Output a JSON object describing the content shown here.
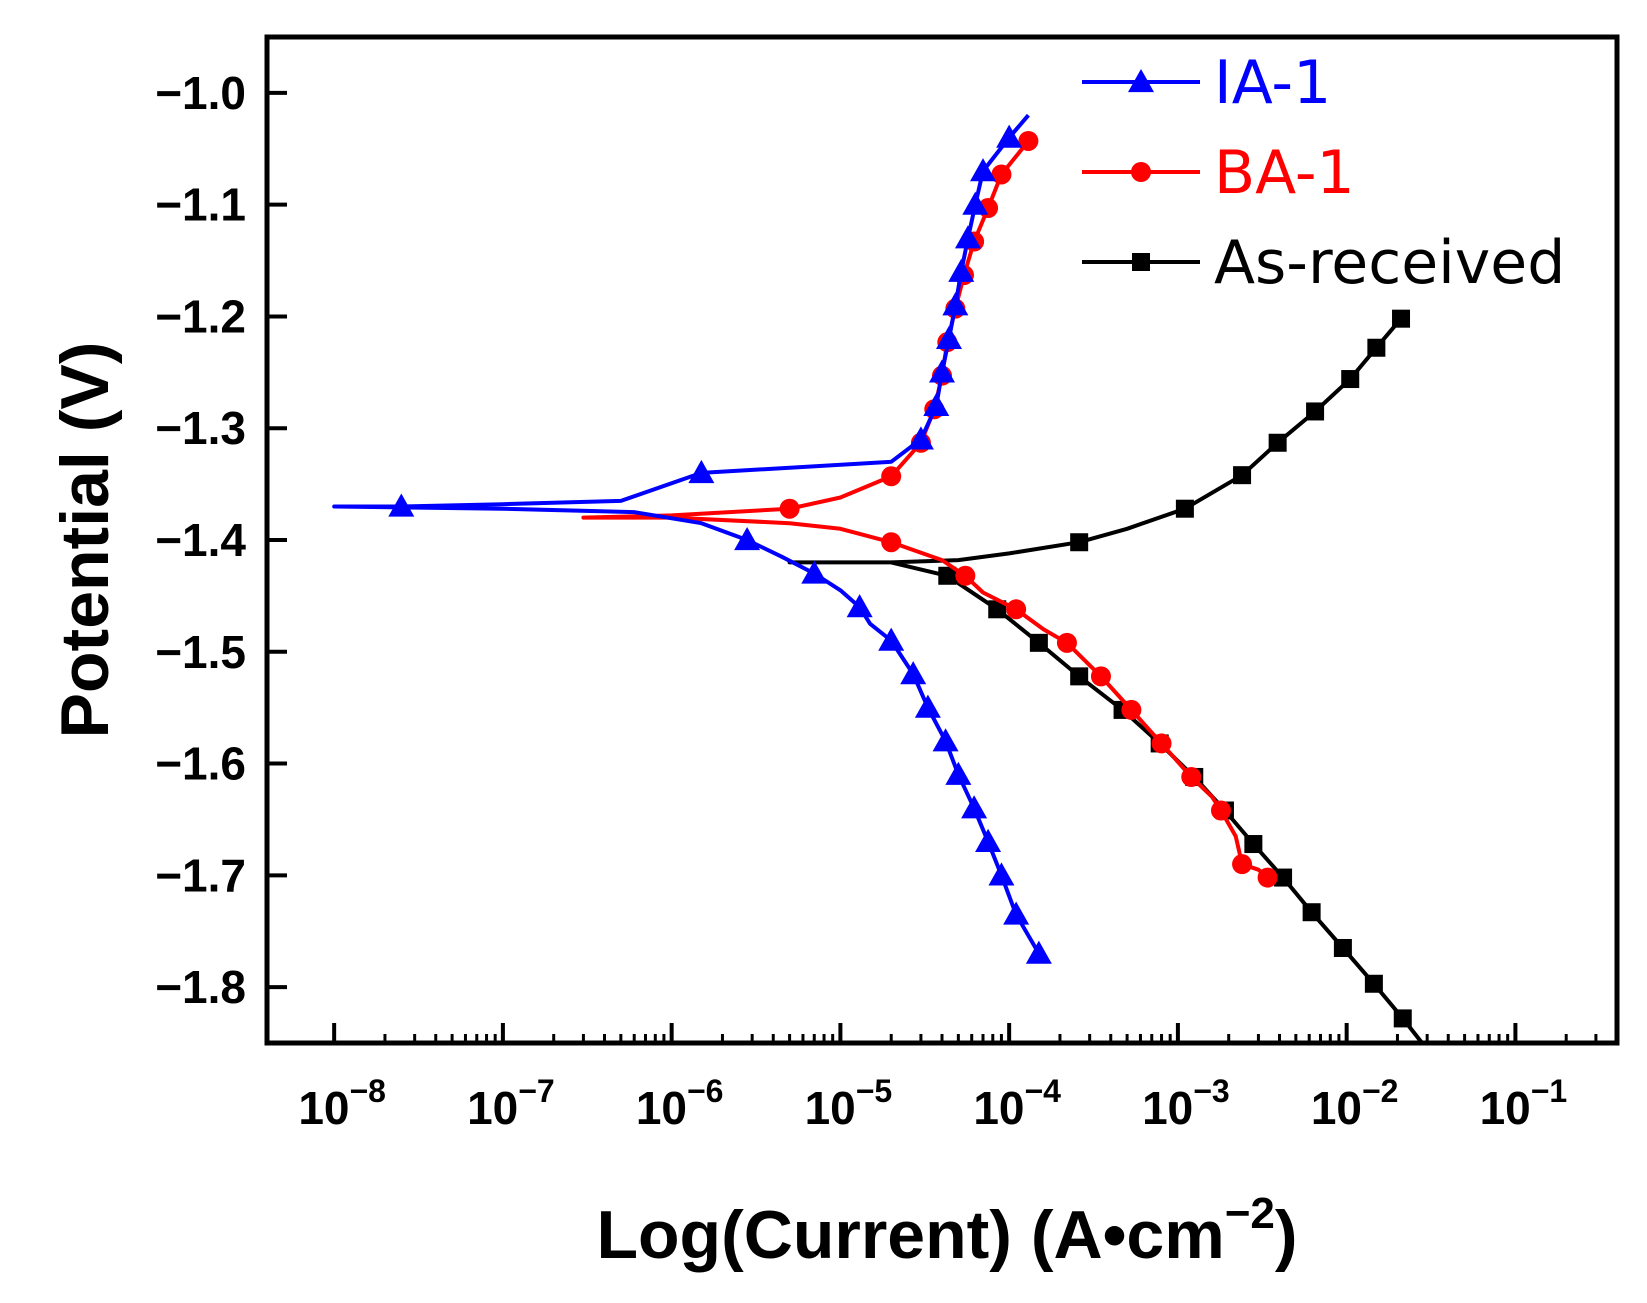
{
  "chart_data": {
    "type": "line",
    "xlabel": "Log(Current) (A•cm",
    "xlabel_sup": "−2",
    "xlabel_close": ")",
    "ylabel": "Potential (V)",
    "x_scale": "log",
    "xlim": [
      4e-09,
      0.4
    ],
    "ylim": [
      -1.85,
      -0.95
    ],
    "grid": false,
    "legend_position": "top-right",
    "x_ticks": [
      {
        "value": 1e-08,
        "base": "10",
        "exp": "−8"
      },
      {
        "value": 1e-07,
        "base": "10",
        "exp": "−7"
      },
      {
        "value": 1e-06,
        "base": "10",
        "exp": "−6"
      },
      {
        "value": 1e-05,
        "base": "10",
        "exp": "−5"
      },
      {
        "value": 0.0001,
        "base": "10",
        "exp": "−4"
      },
      {
        "value": 0.001,
        "base": "10",
        "exp": "−3"
      },
      {
        "value": 0.01,
        "base": "10",
        "exp": "−2"
      },
      {
        "value": 0.1,
        "base": "10",
        "exp": "−1"
      }
    ],
    "y_ticks": [
      {
        "value": -1.0,
        "label": "−1.0"
      },
      {
        "value": -1.1,
        "label": "−1.1"
      },
      {
        "value": -1.2,
        "label": "−1.2"
      },
      {
        "value": -1.3,
        "label": "−1.3"
      },
      {
        "value": -1.4,
        "label": "−1.4"
      },
      {
        "value": -1.5,
        "label": "−1.5"
      },
      {
        "value": -1.6,
        "label": "−1.6"
      },
      {
        "value": -1.7,
        "label": "−1.7"
      },
      {
        "value": -1.8,
        "label": "−1.8"
      }
    ],
    "series": [
      {
        "name": "IA-1",
        "color": "#0000ff",
        "marker": "triangle",
        "points": [
          [
            0.00013,
            -1.02
          ],
          [
            0.0001,
            -1.04
          ],
          [
            7e-05,
            -1.07
          ],
          [
            6.3e-05,
            -1.1
          ],
          [
            5.7e-05,
            -1.13
          ],
          [
            5.2e-05,
            -1.16
          ],
          [
            4.8e-05,
            -1.19
          ],
          [
            4.4e-05,
            -1.22
          ],
          [
            4e-05,
            -1.25
          ],
          [
            3.7e-05,
            -1.28
          ],
          [
            3e-05,
            -1.31
          ],
          [
            2e-05,
            -1.33
          ],
          [
            1.5e-06,
            -1.34
          ],
          [
            5e-07,
            -1.365
          ],
          [
            1e-07,
            -1.368
          ],
          [
            2.5e-08,
            -1.37
          ],
          [
            1e-08,
            -1.37
          ],
          [
            1e-07,
            -1.372
          ],
          [
            6e-07,
            -1.375
          ],
          [
            1.5e-06,
            -1.385
          ],
          [
            2.8e-06,
            -1.4
          ],
          [
            4.5e-06,
            -1.415
          ],
          [
            7e-06,
            -1.43
          ],
          [
            1e-05,
            -1.445
          ],
          [
            1.3e-05,
            -1.46
          ],
          [
            1.5e-05,
            -1.475
          ],
          [
            2e-05,
            -1.49
          ],
          [
            2.7e-05,
            -1.52
          ],
          [
            3.3e-05,
            -1.55
          ],
          [
            4.2e-05,
            -1.58
          ],
          [
            5e-05,
            -1.61
          ],
          [
            6.2e-05,
            -1.64
          ],
          [
            7.5e-05,
            -1.67
          ],
          [
            9e-05,
            -1.7
          ],
          [
            0.00011,
            -1.735
          ],
          [
            0.00015,
            -1.77
          ]
        ],
        "markers": [
          [
            0.0001,
            -1.04
          ],
          [
            7e-05,
            -1.07
          ],
          [
            6.3e-05,
            -1.1
          ],
          [
            5.7e-05,
            -1.13
          ],
          [
            5.2e-05,
            -1.16
          ],
          [
            4.8e-05,
            -1.19
          ],
          [
            4.4e-05,
            -1.22
          ],
          [
            4e-05,
            -1.25
          ],
          [
            3.7e-05,
            -1.28
          ],
          [
            3e-05,
            -1.31
          ],
          [
            1.5e-06,
            -1.34
          ],
          [
            2.5e-08,
            -1.37
          ],
          [
            2.8e-06,
            -1.4
          ],
          [
            7e-06,
            -1.43
          ],
          [
            1.3e-05,
            -1.46
          ],
          [
            2e-05,
            -1.49
          ],
          [
            2.7e-05,
            -1.52
          ],
          [
            3.3e-05,
            -1.55
          ],
          [
            4.2e-05,
            -1.58
          ],
          [
            5e-05,
            -1.61
          ],
          [
            6.2e-05,
            -1.64
          ],
          [
            7.5e-05,
            -1.67
          ],
          [
            9e-05,
            -1.7
          ],
          [
            0.00011,
            -1.735
          ],
          [
            0.00015,
            -1.77
          ]
        ]
      },
      {
        "name": "BA-1",
        "color": "#ff0000",
        "marker": "circle",
        "points": [
          [
            0.00013,
            -1.043
          ],
          [
            9e-05,
            -1.073
          ],
          [
            7.5e-05,
            -1.103
          ],
          [
            6.2e-05,
            -1.133
          ],
          [
            5.4e-05,
            -1.163
          ],
          [
            4.8e-05,
            -1.193
          ],
          [
            4.3e-05,
            -1.223
          ],
          [
            4e-05,
            -1.253
          ],
          [
            3.6e-05,
            -1.283
          ],
          [
            3e-05,
            -1.313
          ],
          [
            2e-05,
            -1.343
          ],
          [
            1e-05,
            -1.362
          ],
          [
            5e-06,
            -1.372
          ],
          [
            1e-06,
            -1.378
          ],
          [
            3e-07,
            -1.38
          ],
          [
            1e-06,
            -1.38
          ],
          [
            5e-06,
            -1.385
          ],
          [
            1e-05,
            -1.39
          ],
          [
            2e-05,
            -1.402
          ],
          [
            4e-05,
            -1.418
          ],
          [
            5.5e-05,
            -1.432
          ],
          [
            7e-05,
            -1.447
          ],
          [
            0.00011,
            -1.462
          ],
          [
            0.00016,
            -1.48
          ],
          [
            0.00022,
            -1.492
          ],
          [
            0.00035,
            -1.522
          ],
          [
            0.00053,
            -1.552
          ],
          [
            0.0008,
            -1.582
          ],
          [
            0.0012,
            -1.612
          ],
          [
            0.0016,
            -1.63
          ],
          [
            0.0018,
            -1.642
          ],
          [
            0.0022,
            -1.665
          ],
          [
            0.0024,
            -1.69
          ],
          [
            0.003,
            -1.695
          ],
          [
            0.0034,
            -1.702
          ]
        ],
        "markers": [
          [
            0.00013,
            -1.043
          ],
          [
            9e-05,
            -1.073
          ],
          [
            7.5e-05,
            -1.103
          ],
          [
            6.2e-05,
            -1.133
          ],
          [
            5.4e-05,
            -1.163
          ],
          [
            4.8e-05,
            -1.193
          ],
          [
            4.3e-05,
            -1.223
          ],
          [
            4e-05,
            -1.253
          ],
          [
            3.6e-05,
            -1.283
          ],
          [
            3e-05,
            -1.313
          ],
          [
            2e-05,
            -1.343
          ],
          [
            5e-06,
            -1.372
          ],
          [
            2e-05,
            -1.402
          ],
          [
            5.5e-05,
            -1.432
          ],
          [
            0.00011,
            -1.462
          ],
          [
            0.00022,
            -1.492
          ],
          [
            0.00035,
            -1.522
          ],
          [
            0.00053,
            -1.552
          ],
          [
            0.0008,
            -1.582
          ],
          [
            0.0012,
            -1.612
          ],
          [
            0.0018,
            -1.642
          ],
          [
            0.0024,
            -1.69
          ],
          [
            0.0034,
            -1.702
          ]
        ]
      },
      {
        "name": "As-received",
        "color": "#000000",
        "marker": "square",
        "points": [
          [
            0.021,
            -1.202
          ],
          [
            0.015,
            -1.228
          ],
          [
            0.0105,
            -1.256
          ],
          [
            0.0065,
            -1.285
          ],
          [
            0.0039,
            -1.313
          ],
          [
            0.0024,
            -1.342
          ],
          [
            0.0011,
            -1.372
          ],
          [
            0.0005,
            -1.39
          ],
          [
            0.00026,
            -1.402
          ],
          [
            0.0001,
            -1.412
          ],
          [
            5e-05,
            -1.418
          ],
          [
            2e-05,
            -1.42
          ],
          [
            5e-06,
            -1.42
          ],
          [
            2e-05,
            -1.42
          ],
          [
            4.3e-05,
            -1.432
          ],
          [
            8.5e-05,
            -1.462
          ],
          [
            0.00015,
            -1.492
          ],
          [
            0.00026,
            -1.522
          ],
          [
            0.00047,
            -1.552
          ],
          [
            0.00078,
            -1.582
          ],
          [
            0.00125,
            -1.612
          ],
          [
            0.0019,
            -1.642
          ],
          [
            0.0028,
            -1.672
          ],
          [
            0.0042,
            -1.702
          ],
          [
            0.0062,
            -1.733
          ],
          [
            0.0095,
            -1.765
          ],
          [
            0.0145,
            -1.797
          ],
          [
            0.0215,
            -1.828
          ],
          [
            0.028,
            -1.85
          ]
        ],
        "markers": [
          [
            0.021,
            -1.202
          ],
          [
            0.015,
            -1.228
          ],
          [
            0.0105,
            -1.256
          ],
          [
            0.0065,
            -1.285
          ],
          [
            0.0039,
            -1.313
          ],
          [
            0.0024,
            -1.342
          ],
          [
            0.0011,
            -1.372
          ],
          [
            0.00026,
            -1.402
          ],
          [
            4.3e-05,
            -1.432
          ],
          [
            8.5e-05,
            -1.462
          ],
          [
            0.00015,
            -1.492
          ],
          [
            0.00026,
            -1.522
          ],
          [
            0.00047,
            -1.552
          ],
          [
            0.00078,
            -1.582
          ],
          [
            0.00125,
            -1.612
          ],
          [
            0.0019,
            -1.642
          ],
          [
            0.0028,
            -1.672
          ],
          [
            0.0042,
            -1.702
          ],
          [
            0.0062,
            -1.733
          ],
          [
            0.0095,
            -1.765
          ],
          [
            0.0145,
            -1.797
          ],
          [
            0.0215,
            -1.828
          ]
        ]
      }
    ]
  }
}
